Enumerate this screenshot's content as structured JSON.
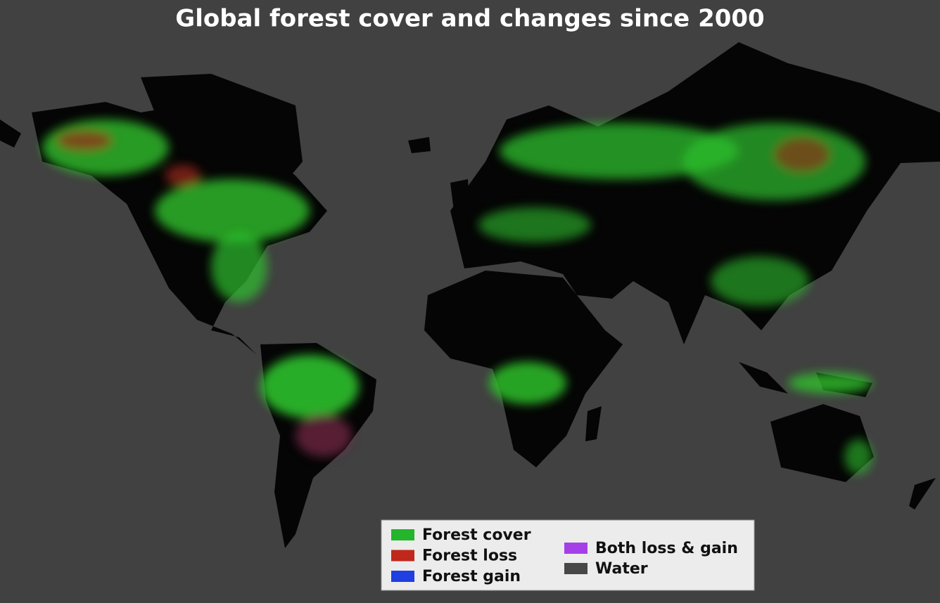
{
  "title": "Global forest cover and changes since 2000",
  "legend": {
    "items": [
      {
        "label": "Forest cover",
        "color": "#23b52b"
      },
      {
        "label": "Forest loss",
        "color": "#c0281b"
      },
      {
        "label": "Forest gain",
        "color": "#1f3fe0"
      },
      {
        "label": "Both loss & gain",
        "color": "#a540e8"
      },
      {
        "label": "Water",
        "color": "#474747"
      }
    ]
  }
}
